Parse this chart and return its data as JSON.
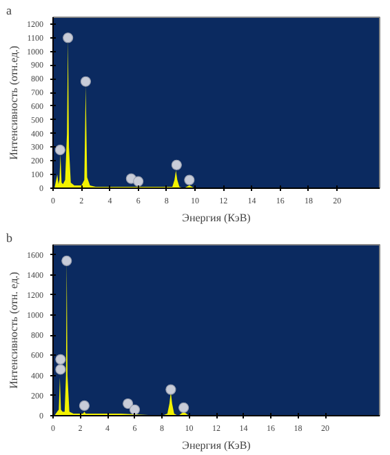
{
  "chart_data": [
    {
      "type": "area",
      "xlabel": "Энергия (КэВ)",
      "ylabel": "Интенсивность (отн.ед.)",
      "annotations": [
        "a"
      ],
      "xlim": [
        0,
        23
      ],
      "ylim": [
        0,
        1250
      ],
      "xticks": [
        0,
        2,
        4,
        6,
        8,
        10,
        12,
        14,
        16,
        18,
        20
      ],
      "yticks": [
        0,
        100,
        200,
        300,
        400,
        500,
        600,
        700,
        800,
        900,
        1000,
        1100,
        1200
      ],
      "grid": false,
      "series": [
        {
          "color": "#f2f200",
          "x": [
            0.1,
            0.2,
            0.3,
            0.38,
            0.45,
            0.52,
            0.6,
            0.7,
            0.85,
            0.98,
            1.05,
            1.12,
            1.25,
            1.5,
            2.0,
            2.2,
            2.3,
            2.4,
            2.6,
            3.0,
            4.0,
            5.0,
            5.5,
            6.0,
            7.0,
            8.0,
            8.4,
            8.55,
            8.65,
            8.75,
            8.9,
            9.2,
            9.6,
            10.0,
            23.0
          ],
          "values": [
            0,
            50,
            100,
            30,
            60,
            250,
            40,
            30,
            60,
            400,
            1090,
            300,
            40,
            20,
            20,
            60,
            750,
            80,
            20,
            10,
            10,
            10,
            10,
            10,
            10,
            10,
            10,
            60,
            130,
            60,
            10,
            0,
            20,
            0,
            0
          ]
        },
        {
          "type": "scatter",
          "marker": "circle",
          "color": "#c8ccd8",
          "x": [
            0.5,
            1.05,
            2.3,
            5.5,
            6.0,
            8.7,
            9.6
          ],
          "values": [
            280,
            1100,
            780,
            70,
            50,
            170,
            60
          ]
        }
      ]
    },
    {
      "type": "area",
      "xlabel": "Энергия (КэВ)",
      "ylabel": "Интенсивность (отн. ед.)",
      "annotations": [
        "b"
      ],
      "xlim": [
        0,
        24
      ],
      "ylim": [
        0,
        1700
      ],
      "xticks": [
        0,
        2,
        4,
        6,
        8,
        10,
        12,
        14,
        16,
        18,
        20
      ],
      "yticks": [
        0,
        200,
        400,
        600,
        800,
        1000,
        1200,
        1400,
        1600
      ],
      "grid": false,
      "series": [
        {
          "color": "#f2f200",
          "x": [
            0.1,
            0.3,
            0.42,
            0.5,
            0.58,
            0.7,
            0.85,
            0.95,
            1.0,
            1.06,
            1.2,
            1.5,
            2.2,
            2.3,
            2.4,
            3.0,
            5.0,
            8.0,
            8.4,
            8.55,
            8.65,
            8.75,
            8.9,
            9.2,
            9.6,
            10.0,
            24.0
          ],
          "values": [
            0,
            40,
            60,
            380,
            60,
            40,
            40,
            400,
            1540,
            400,
            40,
            20,
            20,
            40,
            20,
            20,
            20,
            0,
            20,
            120,
            240,
            120,
            20,
            0,
            40,
            0,
            0
          ]
        },
        {
          "type": "scatter",
          "marker": "circle",
          "color": "#c8ccd8",
          "x": [
            0.55,
            0.55,
            1.0,
            2.3,
            5.5,
            6.0,
            8.65,
            9.6
          ],
          "values": [
            560,
            460,
            1540,
            100,
            120,
            60,
            260,
            80
          ]
        }
      ]
    }
  ]
}
